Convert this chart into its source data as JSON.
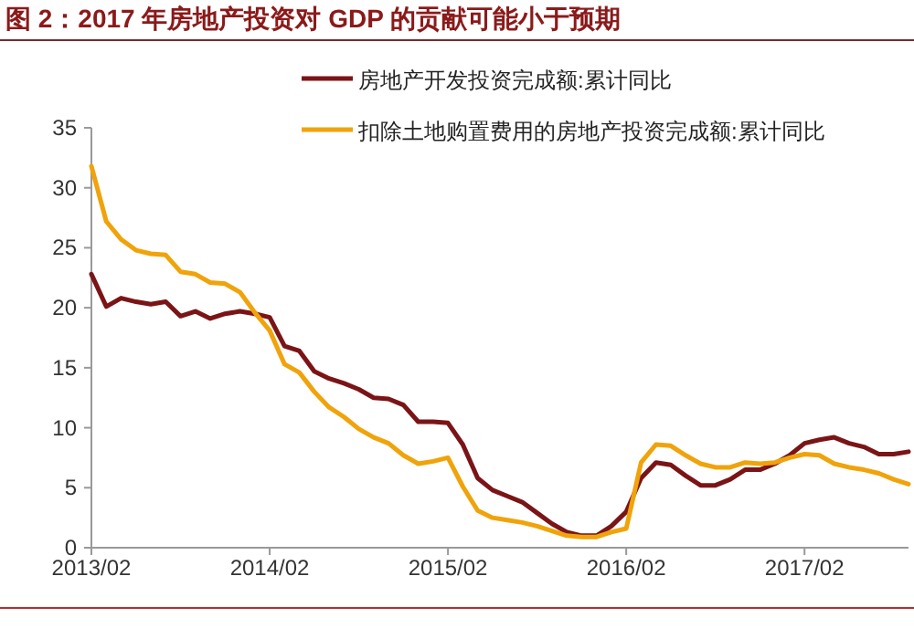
{
  "chart_data": {
    "type": "line",
    "title": "图 2：2017 年房地产投资对 GDP 的贡献可能小于预期",
    "x": [
      "2013-02",
      "2013-03",
      "2013-04",
      "2013-05",
      "2013-06",
      "2013-07",
      "2013-08",
      "2013-09",
      "2013-10",
      "2013-11",
      "2013-12",
      "2014-01",
      "2014-02",
      "2014-03",
      "2014-04",
      "2014-05",
      "2014-06",
      "2014-07",
      "2014-08",
      "2014-09",
      "2014-10",
      "2014-11",
      "2014-12",
      "2015-01",
      "2015-02",
      "2015-03",
      "2015-04",
      "2015-05",
      "2015-06",
      "2015-07",
      "2015-08",
      "2015-09",
      "2015-10",
      "2015-11",
      "2015-12",
      "2016-01",
      "2016-02",
      "2016-03",
      "2016-04",
      "2016-05",
      "2016-06",
      "2016-07",
      "2016-08",
      "2016-09",
      "2016-10",
      "2016-11",
      "2016-12",
      "2017-01",
      "2017-02",
      "2017-03",
      "2017-04",
      "2017-05",
      "2017-06",
      "2017-07",
      "2017-08",
      "2017-09"
    ],
    "series": [
      {
        "name": "房地产开发投资完成额:累计同比",
        "color": "#7b1416",
        "values": [
          22.8,
          20.1,
          20.8,
          20.5,
          20.3,
          20.5,
          19.3,
          19.7,
          19.1,
          19.5,
          19.7,
          19.5,
          19.2,
          16.8,
          16.4,
          14.7,
          14.1,
          13.7,
          13.2,
          12.5,
          12.4,
          11.9,
          10.5,
          10.5,
          10.4,
          8.6,
          5.8,
          4.8,
          4.3,
          3.8,
          2.9,
          2.0,
          1.3,
          1.0,
          1.0,
          1.8,
          3.0,
          5.8,
          7.1,
          6.9,
          6.0,
          5.2,
          5.2,
          5.7,
          6.5,
          6.5,
          7.0,
          7.7,
          8.7,
          9.0,
          9.2,
          8.7,
          8.4,
          7.8,
          7.8,
          8.0
        ]
      },
      {
        "name": "扣除土地购置费用的房地产投资完成额:累计同比",
        "color": "#f0a30a",
        "values": [
          31.8,
          27.2,
          25.7,
          24.8,
          24.5,
          24.4,
          23.0,
          22.8,
          22.1,
          22.0,
          21.3,
          19.6,
          18.1,
          15.3,
          14.6,
          13.0,
          11.7,
          10.9,
          9.9,
          9.2,
          8.7,
          7.7,
          7.0,
          7.2,
          7.5,
          5.1,
          3.1,
          2.5,
          2.3,
          2.1,
          1.8,
          1.4,
          1.0,
          0.9,
          0.9,
          1.3,
          1.6,
          7.1,
          8.6,
          8.5,
          7.7,
          7.0,
          6.7,
          6.7,
          7.1,
          7.0,
          7.1,
          7.5,
          7.8,
          7.7,
          7.0,
          6.7,
          6.5,
          6.2,
          5.7,
          5.3
        ]
      }
    ],
    "xlim": [
      "2013-02",
      "2017-09"
    ],
    "xticks": [
      {
        "value": "2013-02",
        "label": "2013/02"
      },
      {
        "value": "2014-02",
        "label": "2014/02"
      },
      {
        "value": "2015-02",
        "label": "2015/02"
      },
      {
        "value": "2016-02",
        "label": "2016/02"
      },
      {
        "value": "2017-02",
        "label": "2017/02"
      }
    ],
    "ylim": [
      0,
      35
    ],
    "yticks": [
      0,
      5,
      10,
      15,
      20,
      25,
      30,
      35
    ],
    "grid": false,
    "legend": "top",
    "marker": "none",
    "line_style": "solid"
  }
}
